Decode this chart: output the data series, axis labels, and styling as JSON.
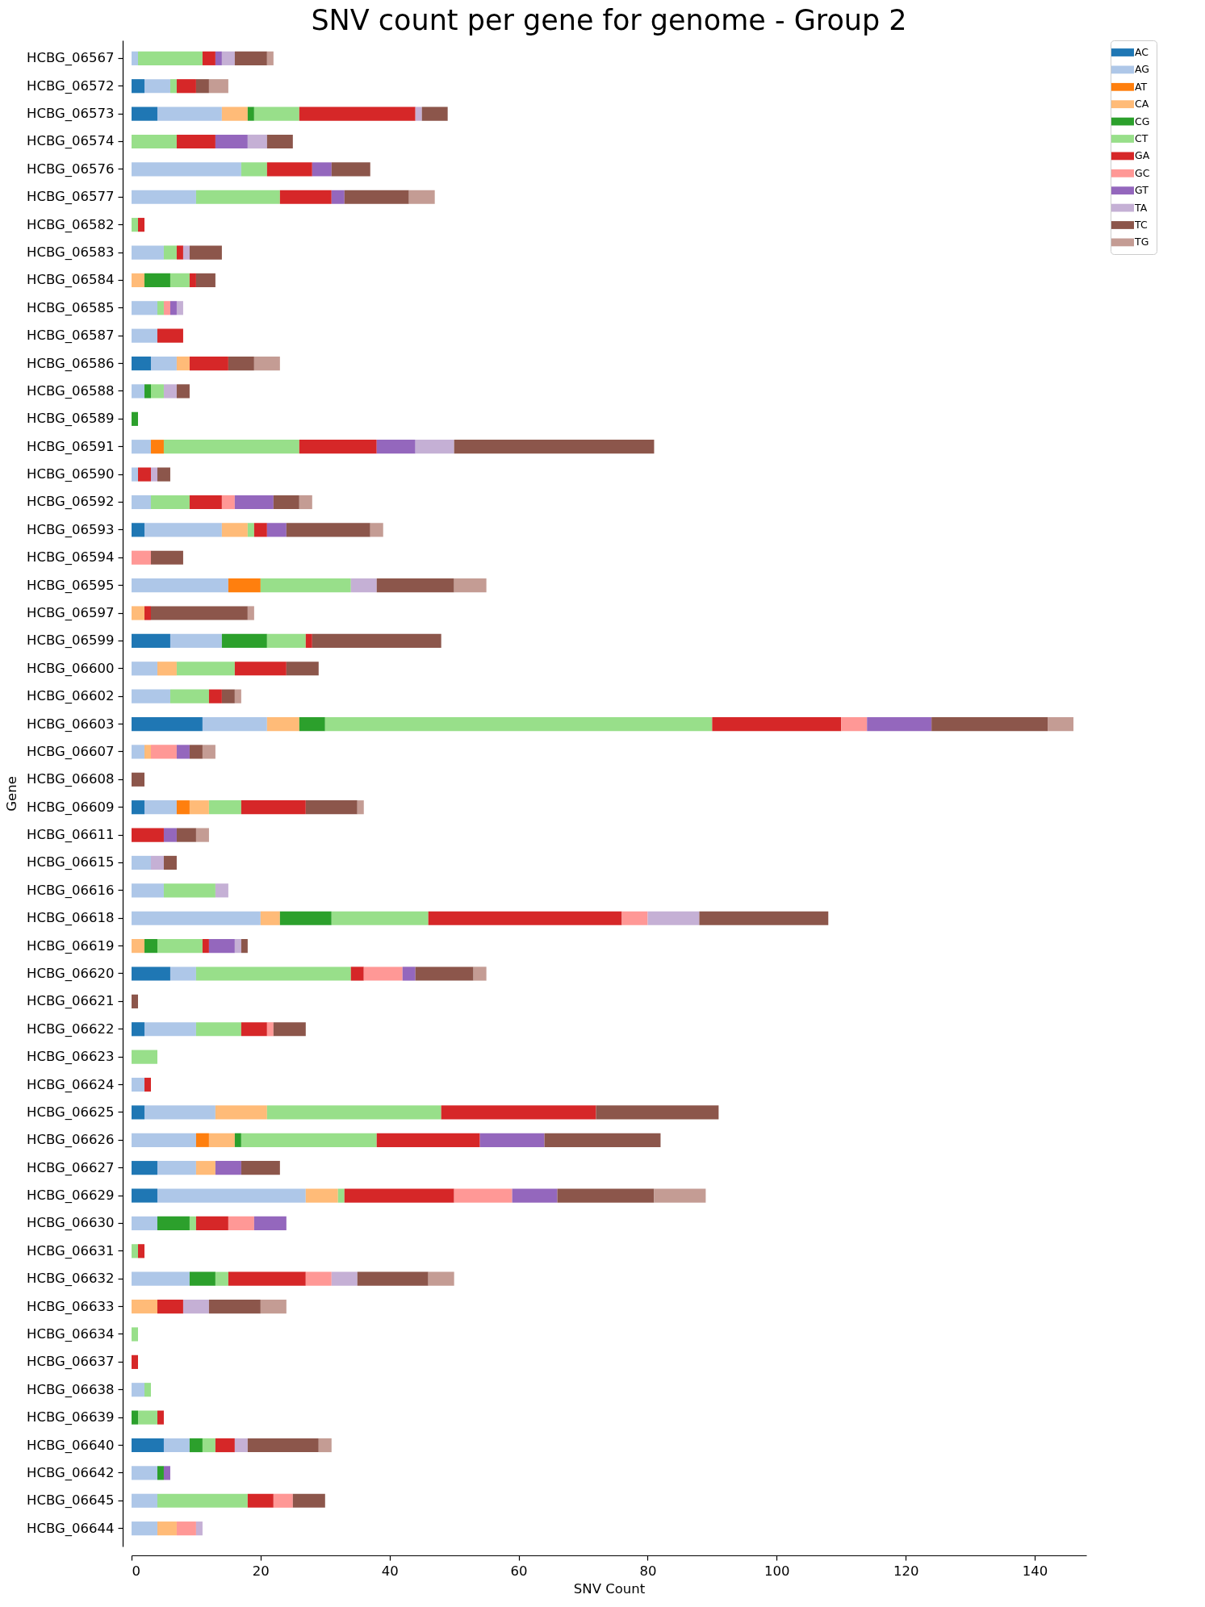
{
  "chart_data": {
    "type": "bar",
    "orientation": "horizontal",
    "stacked": true,
    "title": "SNV count per gene for genome - Group 2",
    "xlabel": "SNV Count",
    "ylabel": "Gene",
    "categories": [
      "HCBG_06567",
      "HCBG_06572",
      "HCBG_06573",
      "HCBG_06574",
      "HCBG_06576",
      "HCBG_06577",
      "HCBG_06582",
      "HCBG_06583",
      "HCBG_06584",
      "HCBG_06585",
      "HCBG_06587",
      "HCBG_06586",
      "HCBG_06588",
      "HCBG_06589",
      "HCBG_06591",
      "HCBG_06590",
      "HCBG_06592",
      "HCBG_06593",
      "HCBG_06594",
      "HCBG_06595",
      "HCBG_06597",
      "HCBG_06599",
      "HCBG_06600",
      "HCBG_06602",
      "HCBG_06603",
      "HCBG_06607",
      "HCBG_06608",
      "HCBG_06609",
      "HCBG_06611",
      "HCBG_06615",
      "HCBG_06616",
      "HCBG_06618",
      "HCBG_06619",
      "HCBG_06620",
      "HCBG_06621",
      "HCBG_06622",
      "HCBG_06623",
      "HCBG_06624",
      "HCBG_06625",
      "HCBG_06626",
      "HCBG_06627",
      "HCBG_06629",
      "HCBG_06630",
      "HCBG_06631",
      "HCBG_06632",
      "HCBG_06633",
      "HCBG_06634",
      "HCBG_06637",
      "HCBG_06638",
      "HCBG_06639",
      "HCBG_06640",
      "HCBG_06642",
      "HCBG_06645",
      "HCBG_06644"
    ],
    "series": [
      {
        "name": "AC",
        "color": "#1f77b4",
        "values": [
          0,
          2,
          4,
          0,
          0,
          0,
          0,
          0,
          0,
          0,
          0,
          3,
          0,
          0,
          0,
          0,
          0,
          2,
          0,
          0,
          0,
          6,
          0,
          0,
          11,
          0,
          0,
          2,
          0,
          0,
          0,
          0,
          0,
          6,
          0,
          2,
          0,
          0,
          2,
          0,
          4,
          4,
          0,
          0,
          0,
          0,
          0,
          0,
          0,
          0,
          5,
          0,
          0,
          0
        ]
      },
      {
        "name": "AG",
        "color": "#aec7e8",
        "values": [
          1,
          4,
          10,
          0,
          17,
          10,
          0,
          5,
          0,
          4,
          4,
          4,
          2,
          0,
          3,
          1,
          3,
          12,
          0,
          15,
          0,
          8,
          4,
          6,
          10,
          2,
          0,
          5,
          0,
          3,
          5,
          20,
          0,
          4,
          0,
          8,
          0,
          2,
          11,
          10,
          6,
          23,
          4,
          0,
          9,
          0,
          0,
          0,
          2,
          0,
          4,
          4,
          4,
          4
        ]
      },
      {
        "name": "AT",
        "color": "#ff7f0e",
        "values": [
          0,
          0,
          0,
          0,
          0,
          0,
          0,
          0,
          0,
          0,
          0,
          0,
          0,
          0,
          2,
          0,
          0,
          0,
          0,
          5,
          0,
          0,
          0,
          0,
          0,
          0,
          0,
          2,
          0,
          0,
          0,
          0,
          0,
          0,
          0,
          0,
          0,
          0,
          0,
          2,
          0,
          0,
          0,
          0,
          0,
          0,
          0,
          0,
          0,
          0,
          0,
          0,
          0,
          0
        ]
      },
      {
        "name": "CA",
        "color": "#ffbb78",
        "values": [
          0,
          0,
          4,
          0,
          0,
          0,
          0,
          0,
          2,
          0,
          0,
          2,
          0,
          0,
          0,
          0,
          0,
          4,
          0,
          0,
          2,
          0,
          3,
          0,
          5,
          1,
          0,
          3,
          0,
          0,
          0,
          3,
          2,
          0,
          0,
          0,
          0,
          0,
          8,
          4,
          3,
          5,
          0,
          0,
          0,
          4,
          0,
          0,
          0,
          0,
          0,
          0,
          0,
          3
        ]
      },
      {
        "name": "CG",
        "color": "#2ca02c",
        "values": [
          0,
          0,
          1,
          0,
          0,
          0,
          0,
          0,
          4,
          0,
          0,
          0,
          1,
          1,
          0,
          0,
          0,
          0,
          0,
          0,
          0,
          7,
          0,
          0,
          4,
          0,
          0,
          0,
          0,
          0,
          0,
          8,
          2,
          0,
          0,
          0,
          0,
          0,
          0,
          1,
          0,
          0,
          5,
          0,
          4,
          0,
          0,
          0,
          0,
          1,
          2,
          1,
          0,
          0
        ]
      },
      {
        "name": "CT",
        "color": "#98df8a",
        "values": [
          10,
          1,
          7,
          7,
          4,
          13,
          1,
          2,
          3,
          1,
          0,
          0,
          2,
          0,
          21,
          0,
          6,
          1,
          0,
          14,
          0,
          6,
          9,
          6,
          60,
          0,
          0,
          5,
          0,
          0,
          8,
          15,
          7,
          24,
          0,
          7,
          4,
          0,
          27,
          21,
          0,
          1,
          1,
          1,
          2,
          0,
          1,
          0,
          1,
          3,
          2,
          0,
          14,
          0
        ]
      },
      {
        "name": "GA",
        "color": "#d62728",
        "values": [
          2,
          3,
          18,
          6,
          7,
          8,
          1,
          1,
          1,
          0,
          4,
          6,
          0,
          0,
          12,
          2,
          5,
          2,
          0,
          0,
          1,
          1,
          8,
          2,
          20,
          0,
          0,
          10,
          5,
          0,
          0,
          30,
          1,
          2,
          0,
          4,
          0,
          1,
          24,
          16,
          0,
          17,
          5,
          1,
          12,
          4,
          0,
          1,
          0,
          1,
          3,
          0,
          4,
          0
        ]
      },
      {
        "name": "GC",
        "color": "#ff9896",
        "values": [
          0,
          0,
          0,
          0,
          0,
          0,
          0,
          0,
          0,
          1,
          0,
          0,
          0,
          0,
          0,
          0,
          2,
          0,
          3,
          0,
          0,
          0,
          0,
          0,
          4,
          4,
          0,
          0,
          0,
          0,
          0,
          4,
          0,
          6,
          0,
          1,
          0,
          0,
          0,
          0,
          0,
          9,
          4,
          0,
          4,
          0,
          0,
          0,
          0,
          0,
          0,
          0,
          3,
          3
        ]
      },
      {
        "name": "GT",
        "color": "#9467bd",
        "values": [
          1,
          0,
          0,
          5,
          3,
          2,
          0,
          0,
          0,
          1,
          0,
          0,
          0,
          0,
          6,
          0,
          6,
          3,
          0,
          0,
          0,
          0,
          0,
          0,
          10,
          2,
          0,
          0,
          2,
          0,
          0,
          0,
          4,
          2,
          0,
          0,
          0,
          0,
          0,
          10,
          4,
          7,
          5,
          0,
          0,
          0,
          0,
          0,
          0,
          0,
          0,
          1,
          0,
          0
        ]
      },
      {
        "name": "TA",
        "color": "#c5b0d5",
        "values": [
          2,
          0,
          1,
          3,
          0,
          0,
          0,
          1,
          0,
          1,
          0,
          0,
          2,
          0,
          6,
          1,
          0,
          0,
          0,
          4,
          0,
          0,
          0,
          0,
          0,
          0,
          0,
          0,
          0,
          2,
          2,
          8,
          1,
          0,
          0,
          0,
          0,
          0,
          0,
          0,
          0,
          0,
          0,
          0,
          4,
          4,
          0,
          0,
          0,
          0,
          2,
          0,
          0,
          1
        ]
      },
      {
        "name": "TC",
        "color": "#8c564b",
        "values": [
          5,
          2,
          4,
          4,
          6,
          10,
          0,
          5,
          3,
          0,
          0,
          4,
          2,
          0,
          31,
          2,
          4,
          13,
          5,
          12,
          15,
          20,
          5,
          2,
          18,
          2,
          2,
          8,
          3,
          2,
          0,
          20,
          1,
          9,
          1,
          5,
          0,
          0,
          19,
          18,
          6,
          15,
          0,
          0,
          11,
          8,
          0,
          0,
          0,
          0,
          11,
          0,
          5,
          0
        ]
      },
      {
        "name": "TG",
        "color": "#c49c94",
        "values": [
          1,
          3,
          0,
          0,
          0,
          4,
          0,
          0,
          0,
          0,
          0,
          4,
          0,
          0,
          0,
          0,
          2,
          2,
          0,
          5,
          1,
          0,
          0,
          1,
          4,
          2,
          0,
          1,
          2,
          0,
          0,
          0,
          0,
          2,
          0,
          0,
          0,
          0,
          0,
          0,
          0,
          8,
          0,
          0,
          4,
          4,
          0,
          0,
          0,
          0,
          2,
          0,
          0,
          0
        ]
      }
    ],
    "xlim": [
      0,
      148
    ],
    "xticks": [
      0,
      20,
      40,
      60,
      80,
      100,
      120,
      140
    ],
    "legend": "top right"
  }
}
